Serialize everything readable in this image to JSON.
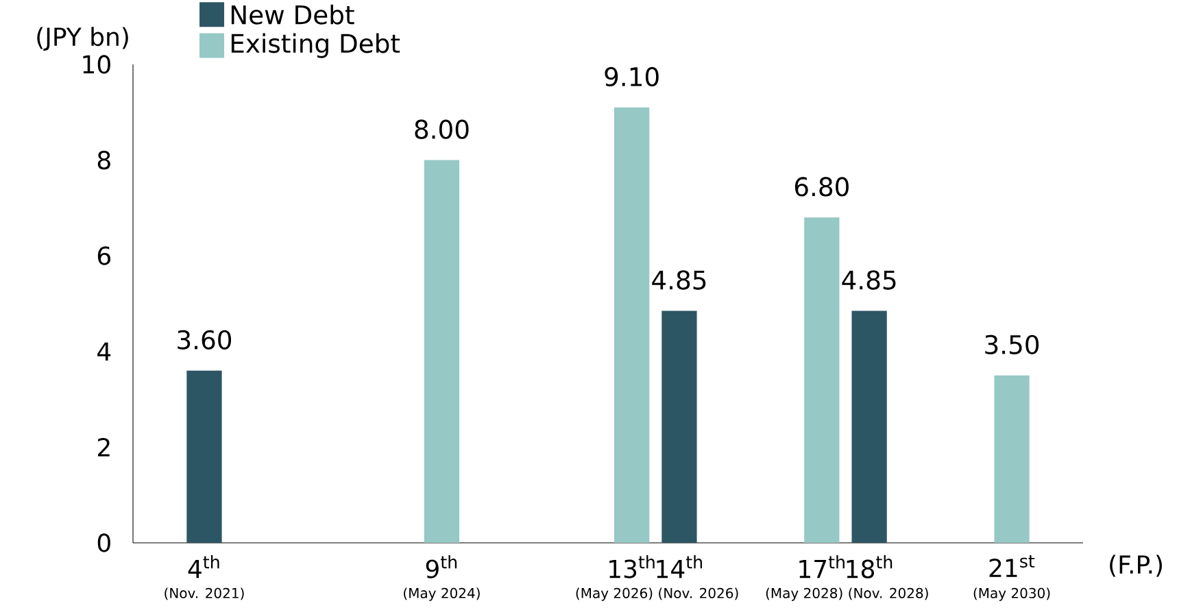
{
  "chart_data": {
    "type": "bar",
    "ylabel": "(JPY bn)",
    "xlabel": "(F.P.)",
    "xlim": [
      2.5,
      22.5
    ],
    "ylim": [
      0,
      10
    ],
    "yticks": [
      0,
      2,
      4,
      6,
      8,
      10
    ],
    "xticks": [
      {
        "value": 4,
        "label": "4$^{th}$"
      },
      {
        "value": 9,
        "label": "9$^{th}$"
      },
      {
        "value": 13,
        "label": "13$^{th}$"
      },
      {
        "value": 14,
        "label": "14$^{th}$"
      },
      {
        "value": 17,
        "label": "17$^{th}$"
      },
      {
        "value": 18,
        "label": "18$^{th}$"
      },
      {
        "value": 21,
        "label": "21$^{st}$"
      }
    ],
    "annotations": [
      "(Nov. 2021)",
      "(May 2024)",
      "(May 2026)",
      "(Nov. 2026)",
      "(May 2028)",
      "(Nov. 2028)",
      "(May 2030)"
    ],
    "series": [
      {
        "name": "New Debt",
        "color": "#2d5664",
        "x": [
          4,
          14,
          18
        ],
        "values": [
          3.6,
          4.85,
          4.85
        ],
        "value_labels": [
          "3.60",
          "4.85",
          "4.85"
        ]
      },
      {
        "name": "Existing Debt",
        "color": "#96c8c5",
        "x": [
          9,
          13,
          17,
          21
        ],
        "values": [
          8,
          9.1,
          6.8,
          3.5
        ],
        "value_labels": [
          "8.00",
          "9.10",
          "6.80",
          "3.50"
        ]
      }
    ],
    "legend": "top left",
    "grid": false
  }
}
